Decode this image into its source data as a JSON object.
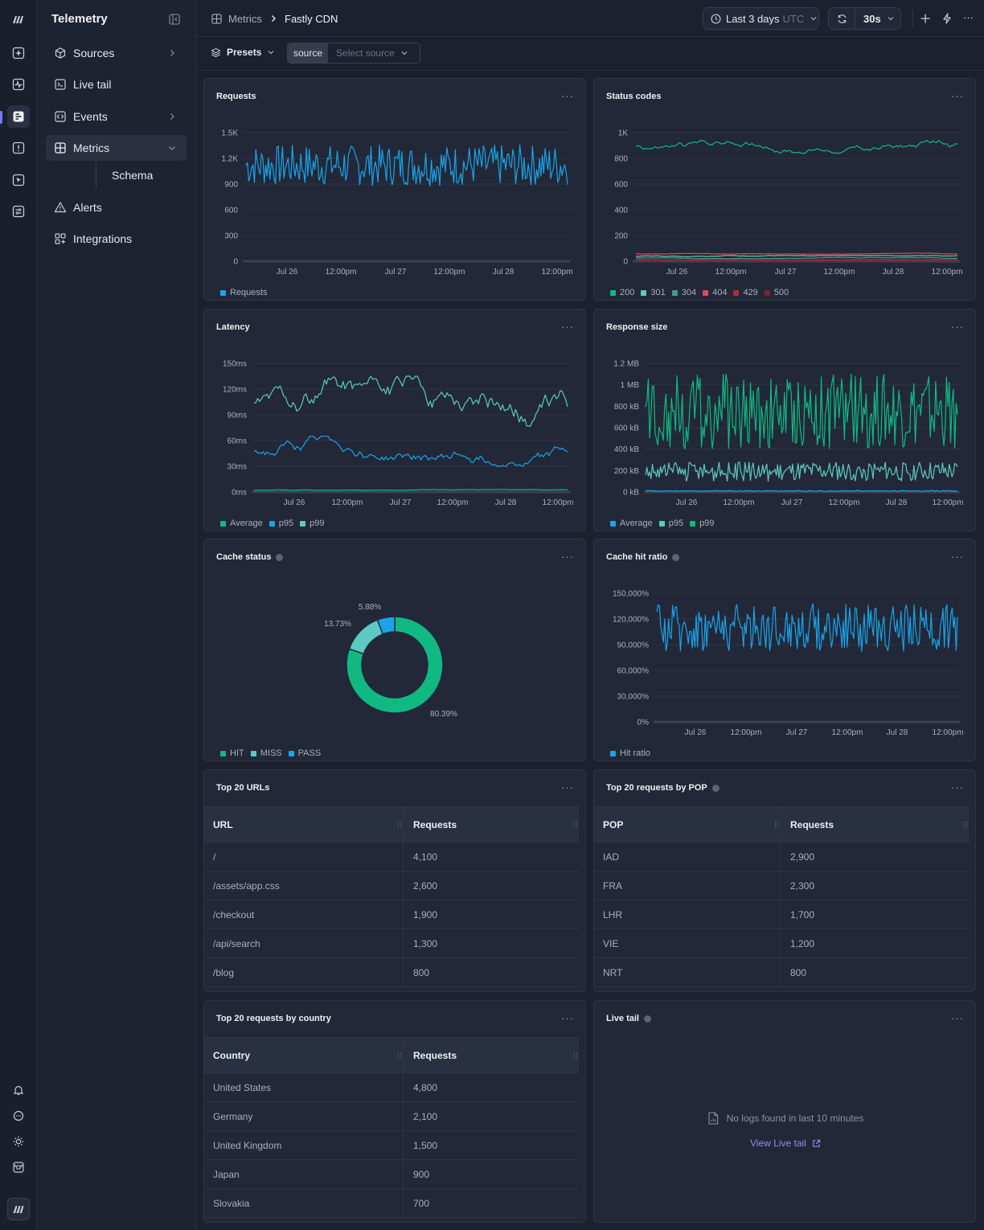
{
  "app": {
    "title": "Telemetry"
  },
  "sidebar": {
    "items": [
      {
        "label": "Sources",
        "icon": "cube-icon",
        "has_chevron": true
      },
      {
        "label": "Live tail",
        "icon": "terminal-icon",
        "has_chevron": false
      },
      {
        "label": "Events",
        "icon": "code-icon",
        "has_chevron": true
      },
      {
        "label": "Metrics",
        "icon": "grid-icon",
        "has_chevron": true,
        "expanded": true
      },
      {
        "label": "Alerts",
        "icon": "warning-icon",
        "has_chevron": false
      },
      {
        "label": "Integrations",
        "icon": "apps-icon",
        "has_chevron": false
      }
    ],
    "sub_item": "Schema"
  },
  "breadcrumb": {
    "parent": "Metrics",
    "current": "Fastly CDN"
  },
  "toolbar": {
    "time_range": "Last 3 days",
    "timezone": "UTC",
    "refresh_interval": "30s",
    "more": "···"
  },
  "filters": {
    "presets_label": "Presets",
    "source_tag": "source",
    "source_placeholder": "Select source"
  },
  "panels": {
    "requests": {
      "title": "Requests",
      "menu": "···"
    },
    "status_codes": {
      "title": "Status codes",
      "menu": "···"
    },
    "latency": {
      "title": "Latency",
      "menu": "···"
    },
    "response_size": {
      "title": "Response size",
      "menu": "···"
    },
    "cache_status": {
      "title": "Cache status",
      "menu": "···"
    },
    "cache_hit_ratio": {
      "title": "Cache hit ratio",
      "menu": "···"
    },
    "top_urls": {
      "title": "Top 20 URLs",
      "menu": "···",
      "columns": [
        "URL",
        "Requests"
      ],
      "rows": [
        [
          "/",
          "4,100"
        ],
        [
          "/assets/app.css",
          "2,600"
        ],
        [
          "/checkout",
          "1,900"
        ],
        [
          "/api/search",
          "1,300"
        ],
        [
          "/blog",
          "800"
        ]
      ]
    },
    "top_pop": {
      "title": "Top 20 requests by POP",
      "menu": "···",
      "columns": [
        "POP",
        "Requests"
      ],
      "rows": [
        [
          "IAD",
          "2,900"
        ],
        [
          "FRA",
          "2,300"
        ],
        [
          "LHR",
          "1,700"
        ],
        [
          "VIE",
          "1,200"
        ],
        [
          "NRT",
          "800"
        ]
      ]
    },
    "top_country": {
      "title": "Top 20 requests by country",
      "menu": "···",
      "columns": [
        "Country",
        "Requests"
      ],
      "rows": [
        [
          "United States",
          "4,800"
        ],
        [
          "Germany",
          "2,100"
        ],
        [
          "United Kingdom",
          "1,500"
        ],
        [
          "Japan",
          "900"
        ],
        [
          "Slovakia",
          "700"
        ]
      ]
    },
    "live_tail": {
      "title": "Live tail",
      "menu": "···",
      "empty_message": "No logs found in last 10 minutes",
      "link": "View Live tail"
    }
  },
  "colors": {
    "blue": "#1aa3e8",
    "green": "#10b981",
    "teal": "#5cc9c3",
    "red": "#e0475b",
    "darkred": "#b02a3c",
    "accent": "#6f7cf2"
  },
  "chart_data": [
    {
      "id": "requests",
      "type": "line",
      "x_ticks": [
        "Jul 26",
        "12:00pm",
        "Jul 27",
        "12:00pm",
        "Jul 28",
        "12:00pm"
      ],
      "y_ticks": [
        "1.5K",
        "1.2K",
        "900",
        "600",
        "300",
        "0"
      ],
      "ylim": [
        0,
        1500
      ],
      "series": [
        {
          "name": "Requests",
          "color": "#1aa3e8",
          "range": [
            880,
            1360
          ]
        }
      ]
    },
    {
      "id": "status_codes",
      "type": "line",
      "x_ticks": [
        "Jul 26",
        "12:00pm",
        "Jul 27",
        "12:00pm",
        "Jul 28",
        "12:00pm"
      ],
      "y_ticks": [
        "1K",
        "800",
        "600",
        "400",
        "200",
        "0"
      ],
      "ylim": [
        0,
        1000
      ],
      "series": [
        {
          "name": "200",
          "color": "#10b981",
          "range": [
            840,
            960
          ]
        },
        {
          "name": "301",
          "color": "#5cc9c3",
          "range": [
            30,
            45
          ]
        },
        {
          "name": "304",
          "color": "#3f9a94",
          "range": [
            20,
            30
          ]
        },
        {
          "name": "404",
          "color": "#e0475b",
          "range": [
            55,
            65
          ]
        },
        {
          "name": "429",
          "color": "#b02a3c",
          "range": [
            10,
            16
          ]
        },
        {
          "name": "500",
          "color": "#7a2433",
          "range": [
            2,
            6
          ]
        }
      ]
    },
    {
      "id": "latency",
      "type": "line",
      "x_ticks": [
        "Jul 26",
        "12:00pm",
        "Jul 27",
        "12:00pm",
        "Jul 28",
        "12:00pm"
      ],
      "y_ticks": [
        "150ms",
        "120ms",
        "90ms",
        "60ms",
        "30ms",
        "0ms"
      ],
      "ylim": [
        0,
        150
      ],
      "series": [
        {
          "name": "Average",
          "color": "#10b981",
          "range": [
            1,
            3
          ]
        },
        {
          "name": "p95",
          "color": "#1aa3e8",
          "range": [
            30,
            65
          ]
        },
        {
          "name": "p99",
          "color": "#5cc9c3",
          "range": [
            65,
            135
          ]
        }
      ]
    },
    {
      "id": "response_size",
      "type": "line",
      "x_ticks": [
        "Jul 26",
        "12:00pm",
        "Jul 27",
        "12:00pm",
        "Jul 28",
        "12:00pm"
      ],
      "y_ticks": [
        "1.2 MB",
        "1 MB",
        "800 kB",
        "600 kB",
        "400 kB",
        "200 kB",
        "0 kB"
      ],
      "ylim": [
        0,
        1200
      ],
      "series": [
        {
          "name": "Average",
          "color": "#1aa3e8",
          "range": [
            5,
            15
          ]
        },
        {
          "name": "p95",
          "color": "#5cc9c3",
          "range": [
            100,
            280
          ]
        },
        {
          "name": "p99",
          "color": "#10b981",
          "range": [
            400,
            1100
          ]
        }
      ]
    },
    {
      "id": "cache_status",
      "type": "pie",
      "labels": [
        "HIT",
        "MISS",
        "PASS"
      ],
      "values": [
        80.39,
        13.73,
        5.88
      ],
      "value_labels": [
        "80.39%",
        "13.73%",
        "5.88%"
      ],
      "colors": [
        "#10b981",
        "#5cc9c3",
        "#1aa3e8"
      ]
    },
    {
      "id": "cache_hit_ratio",
      "type": "line",
      "x_ticks": [
        "Jul 26",
        "12:00pm",
        "Jul 27",
        "12:00pm",
        "Jul 28",
        "12:00pm"
      ],
      "y_ticks": [
        "150,000%",
        "120,000%",
        "90,000%",
        "60,000%",
        "30,000%",
        "0%"
      ],
      "ylim": [
        0,
        150000
      ],
      "series": [
        {
          "name": "Hit ratio",
          "color": "#1aa3e8",
          "range": [
            82000,
            138000
          ]
        }
      ]
    }
  ]
}
